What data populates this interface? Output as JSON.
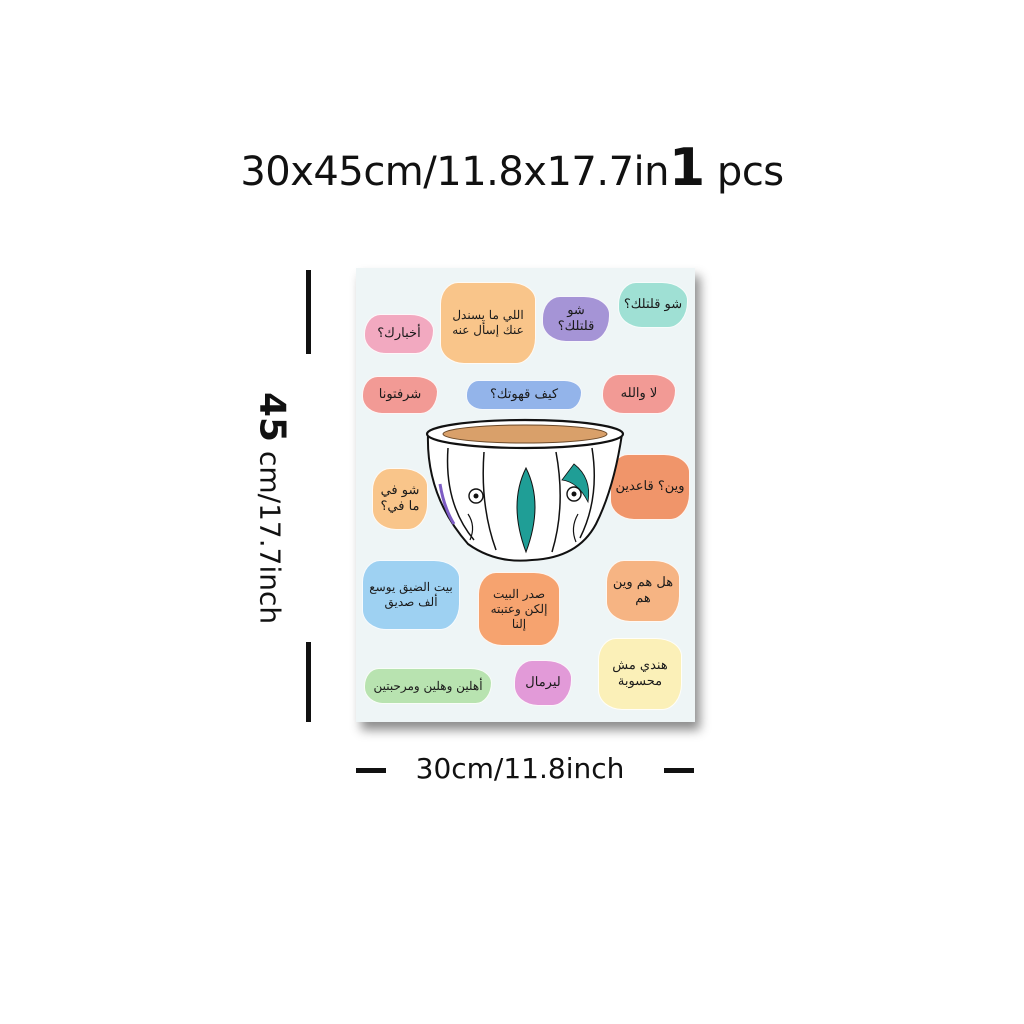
{
  "headline": {
    "size_text": "30x45cm/11.8x17.7in",
    "quantity": "1",
    "unit": "pcs"
  },
  "dimensions": {
    "height_label_num": "45",
    "height_label_unit": "cm/17.7inch",
    "width_label": "30cm/11.8inch"
  },
  "poster": {
    "background_color": "#eef5f6",
    "phrases": [
      {
        "text": "أخبارك؟",
        "color": "#f2a9c0"
      },
      {
        "text": "اللي ما يسندل عنك إسأل عنه",
        "color": "#f9c58a"
      },
      {
        "text": "شو قلتلك؟",
        "color": "#a594d6"
      },
      {
        "text": "شو قلتلك؟",
        "color": "#9fe0d4"
      },
      {
        "text": "شرفتونا",
        "color": "#f29a95"
      },
      {
        "text": "كيف قهوتك؟",
        "color": "#93b4ea"
      },
      {
        "text": "لا والله",
        "color": "#f29a95"
      },
      {
        "text": "شو في ما في؟",
        "color": "#f9c58a"
      },
      {
        "text": "وين؟ قاعدين",
        "color": "#f0956a"
      },
      {
        "text": "بيت الضيق يوسع ألف صديق",
        "color": "#9ed1f2"
      },
      {
        "text": "صدر البيت إلكن وعتبته إلنا",
        "color": "#f6a36f"
      },
      {
        "text": "هل هم وين هم",
        "color": "#f6b483"
      },
      {
        "text": "أهلين وهلين ومرحبتين",
        "color": "#b8e3b0"
      },
      {
        "text": "ليرمال",
        "color": "#e29ad8"
      },
      {
        "text": "هندي مش محسوبة",
        "color": "#fbf0b8"
      }
    ],
    "cup": {
      "accent": "#1f9e96",
      "coffee": "#d9a06a"
    }
  }
}
